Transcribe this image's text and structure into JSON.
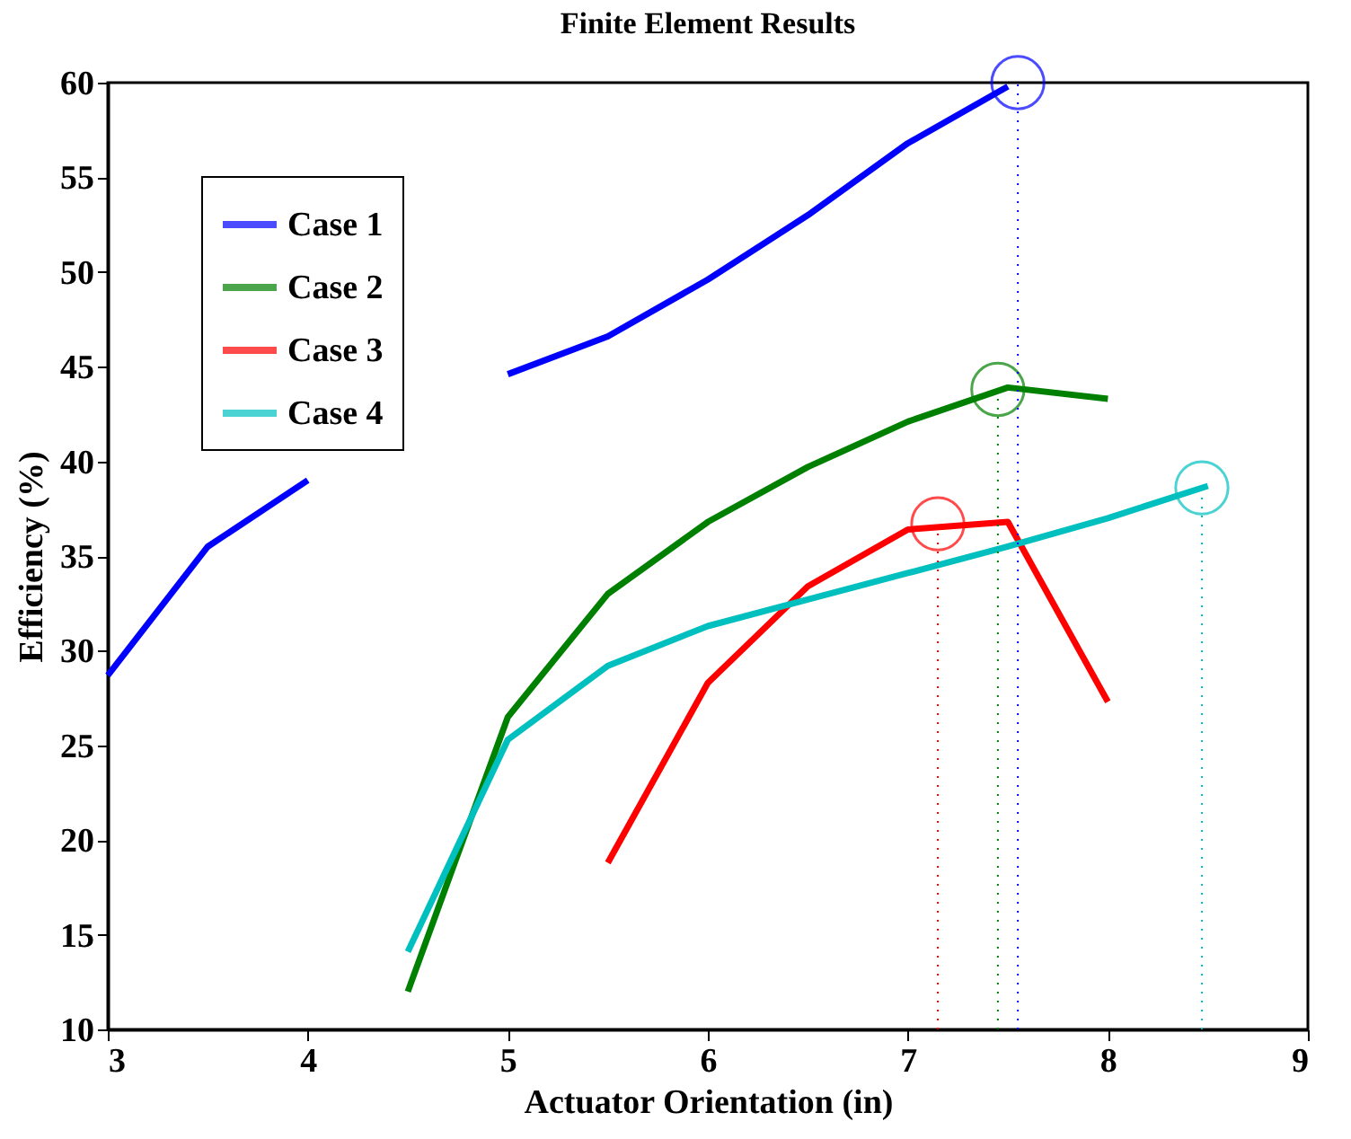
{
  "chart_data": {
    "type": "line",
    "title": "Finite Element Results",
    "xlabel": "Actuator Orientation (in)",
    "ylabel": "Efficiency (%)",
    "xlim": [
      3,
      9
    ],
    "xticks": [
      3,
      4,
      5,
      6,
      7,
      8,
      9
    ],
    "ylim": [
      10,
      60
    ],
    "yticks": [
      10,
      15,
      20,
      25,
      30,
      35,
      40,
      45,
      50,
      55,
      60
    ],
    "grid": false,
    "legend": "top left",
    "line_style": "solid",
    "series": [
      {
        "name": "Case 1",
        "color": "#0000ff",
        "x": [
          3,
          3.5,
          4,
          4.5,
          5,
          5.5,
          6,
          6.5,
          7,
          7.5
        ],
        "values": [
          28.7,
          35.5,
          39,
          null,
          44.6,
          46.6,
          49.6,
          53,
          56.8,
          59.8
        ]
      },
      {
        "name": "Case 2",
        "color": "#008000",
        "x": [
          4.5,
          5,
          5.5,
          6,
          6.5,
          7,
          7.5,
          8
        ],
        "values": [
          12,
          26.5,
          33,
          36.8,
          39.7,
          42.1,
          43.9,
          43.3
        ]
      },
      {
        "name": "Case 3",
        "color": "#ff0000",
        "x": [
          5.5,
          6,
          6.5,
          7,
          7.5,
          8
        ],
        "values": [
          18.8,
          28.3,
          33.4,
          36.4,
          36.8,
          27.3
        ]
      },
      {
        "name": "Case 4",
        "color": "#00bfbf",
        "x": [
          4.5,
          5,
          5.5,
          6,
          6.5,
          7,
          7.5,
          8,
          8.5
        ],
        "values": [
          14.1,
          25.3,
          29.2,
          31.3,
          32.7,
          34.1,
          35.5,
          37,
          38.7
        ]
      },
      {
        "type": "scatter",
        "marker": "circle",
        "x": [
          7.55,
          7.45,
          7.15,
          8.47
        ],
        "values": [
          60,
          43.8,
          36.7,
          38.6
        ],
        "colors": [
          "#0000ff",
          "#008000",
          "#ff0000",
          "#00bfbf"
        ]
      }
    ],
    "ref_lines": [
      {
        "axis": "x",
        "value": 7.55,
        "color": "#0000ff",
        "line_style": "dotted"
      },
      {
        "axis": "x",
        "value": 7.45,
        "color": "#008000",
        "line_style": "dotted"
      },
      {
        "axis": "x",
        "value": 7.15,
        "color": "#ff0000",
        "line_style": "dotted"
      },
      {
        "axis": "x",
        "value": 8.47,
        "color": "#00bfbf",
        "line_style": "dotted"
      }
    ]
  }
}
